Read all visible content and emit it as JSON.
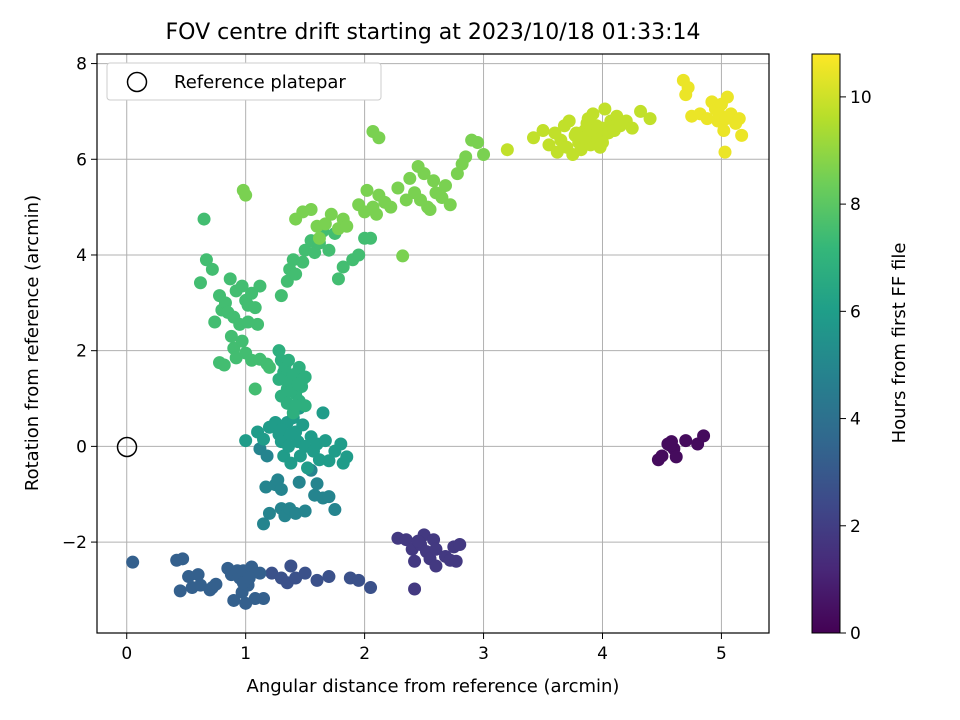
{
  "chart_data": {
    "type": "scatter",
    "title": "FOV centre drift starting at 2023/10/18 01:33:14",
    "xlabel": "Angular distance from reference (arcmin)",
    "ylabel": "Rotation from reference (arcmin)",
    "xlim": [
      -0.25,
      5.4
    ],
    "ylim": [
      -3.9,
      8.2
    ],
    "xticks": [
      0,
      1,
      2,
      3,
      4,
      5
    ],
    "yticks": [
      -2,
      0,
      2,
      4,
      6,
      8
    ],
    "grid": true,
    "legend": {
      "position": "top-left",
      "entries": [
        "Reference platepar"
      ]
    },
    "reference_point": {
      "x": 0,
      "y": 0,
      "marker": "open-circle"
    },
    "colorbar": {
      "label": "Hours from first FF file",
      "colormap": "viridis",
      "range": [
        0,
        10.8
      ],
      "ticks": [
        0,
        2,
        4,
        6,
        8,
        10
      ]
    },
    "marker_color_stops": [
      "#440154",
      "#482878",
      "#3e4989",
      "#31688e",
      "#26828e",
      "#1f9e89",
      "#35b779",
      "#6ece58",
      "#b5de2b",
      "#fde725"
    ],
    "clusters": [
      {
        "t": 0.3,
        "points": [
          [
            4.47,
            -0.28
          ],
          [
            4.5,
            -0.2
          ],
          [
            4.55,
            0.05
          ],
          [
            4.58,
            0.1
          ],
          [
            4.6,
            -0.05
          ],
          [
            4.62,
            -0.22
          ],
          [
            4.7,
            0.12
          ],
          [
            4.8,
            0.05
          ],
          [
            4.85,
            0.22
          ],
          [
            4.57,
            0.02
          ]
        ]
      },
      {
        "t": 1.8,
        "points": [
          [
            2.28,
            -1.92
          ],
          [
            2.35,
            -1.95
          ],
          [
            2.4,
            -2.15
          ],
          [
            2.42,
            -2.4
          ],
          [
            2.47,
            -2.05
          ],
          [
            2.5,
            -1.85
          ],
          [
            2.52,
            -2.2
          ],
          [
            2.55,
            -2.35
          ],
          [
            2.58,
            -1.95
          ],
          [
            2.6,
            -2.15
          ],
          [
            2.6,
            -2.5
          ],
          [
            2.68,
            -2.3
          ],
          [
            2.72,
            -2.38
          ],
          [
            2.75,
            -2.1
          ],
          [
            2.8,
            -2.05
          ],
          [
            2.77,
            -2.4
          ],
          [
            2.45,
            -1.98
          ],
          [
            2.42,
            -2.98
          ]
        ]
      },
      {
        "t": 2.7,
        "points": [
          [
            1.22,
            -2.65
          ],
          [
            1.3,
            -2.75
          ],
          [
            1.35,
            -2.85
          ],
          [
            1.38,
            -2.5
          ],
          [
            1.42,
            -2.75
          ],
          [
            1.5,
            -2.65
          ],
          [
            1.6,
            -2.8
          ],
          [
            1.7,
            -2.72
          ],
          [
            1.88,
            -2.75
          ],
          [
            1.95,
            -2.8
          ],
          [
            2.05,
            -2.95
          ]
        ]
      },
      {
        "t": 3.3,
        "points": [
          [
            0.05,
            -2.42
          ],
          [
            0.42,
            -2.38
          ],
          [
            0.45,
            -3.02
          ],
          [
            0.47,
            -2.35
          ],
          [
            0.52,
            -2.72
          ],
          [
            0.55,
            -2.95
          ],
          [
            0.6,
            -2.68
          ],
          [
            0.62,
            -2.9
          ],
          [
            0.7,
            -3.0
          ],
          [
            0.72,
            -2.95
          ],
          [
            0.75,
            -2.88
          ],
          [
            0.85,
            -2.55
          ],
          [
            0.88,
            -2.68
          ],
          [
            0.9,
            -3.22
          ],
          [
            0.93,
            -2.6
          ],
          [
            0.95,
            -2.75
          ],
          [
            0.97,
            -3.05
          ],
          [
            0.98,
            -2.6
          ],
          [
            1.0,
            -3.28
          ],
          [
            1.02,
            -2.9
          ],
          [
            1.05,
            -2.52
          ],
          [
            1.08,
            -3.18
          ],
          [
            1.12,
            -2.65
          ],
          [
            1.15,
            -3.18
          ],
          [
            0.98,
            -2.85
          ],
          [
            1.03,
            -2.75
          ]
        ]
      },
      {
        "t": 4.9,
        "points": [
          [
            1.15,
            -1.62
          ],
          [
            1.17,
            -0.85
          ],
          [
            1.2,
            -1.4
          ],
          [
            1.25,
            -0.8
          ],
          [
            1.27,
            -0.7
          ],
          [
            1.3,
            -1.3
          ],
          [
            1.3,
            -0.9
          ],
          [
            1.33,
            -1.45
          ],
          [
            1.37,
            -1.3
          ],
          [
            1.42,
            -1.4
          ],
          [
            1.45,
            -0.75
          ],
          [
            1.5,
            -1.35
          ],
          [
            1.55,
            -0.5
          ],
          [
            1.58,
            -1.02
          ],
          [
            1.6,
            -0.78
          ],
          [
            1.65,
            -1.08
          ],
          [
            1.7,
            -1.05
          ],
          [
            1.75,
            -1.32
          ],
          [
            1.12,
            -0.05
          ],
          [
            1.18,
            -0.2
          ]
        ]
      },
      {
        "t": 5.9,
        "points": [
          [
            1.0,
            0.12
          ],
          [
            1.1,
            0.3
          ],
          [
            1.15,
            0.15
          ],
          [
            1.2,
            0.4
          ],
          [
            1.25,
            0.5
          ],
          [
            1.28,
            0.25
          ],
          [
            1.3,
            0.1
          ],
          [
            1.32,
            -0.2
          ],
          [
            1.35,
            0.5
          ],
          [
            1.36,
            0.0
          ],
          [
            1.38,
            -0.35
          ],
          [
            1.4,
            0.6
          ],
          [
            1.42,
            0.3
          ],
          [
            1.44,
            0.1
          ],
          [
            1.45,
            0.8
          ],
          [
            1.46,
            -0.2
          ],
          [
            1.48,
            0.45
          ],
          [
            1.5,
            0.0
          ],
          [
            1.52,
            -0.45
          ],
          [
            1.55,
            0.2
          ],
          [
            1.57,
            -0.1
          ],
          [
            1.6,
            0.05
          ],
          [
            1.62,
            -0.28
          ],
          [
            1.65,
            0.7
          ],
          [
            1.67,
            0.12
          ],
          [
            1.7,
            -0.3
          ],
          [
            1.75,
            -0.1
          ],
          [
            1.8,
            0.05
          ],
          [
            1.82,
            -0.35
          ],
          [
            1.85,
            -0.22
          ],
          [
            1.3,
            0.35
          ],
          [
            1.38,
            0.25
          ]
        ]
      },
      {
        "t": 6.8,
        "points": [
          [
            1.28,
            2.0
          ],
          [
            1.3,
            1.8
          ],
          [
            1.32,
            1.55
          ],
          [
            1.35,
            1.2
          ],
          [
            1.37,
            1.35
          ],
          [
            1.4,
            1.5
          ],
          [
            1.42,
            1.1
          ],
          [
            1.45,
            1.65
          ],
          [
            1.45,
            0.95
          ],
          [
            1.47,
            1.25
          ],
          [
            1.5,
            0.85
          ],
          [
            1.3,
            1.05
          ],
          [
            1.28,
            1.4
          ],
          [
            1.35,
            0.9
          ],
          [
            1.4,
            0.7
          ],
          [
            1.48,
            1.4
          ],
          [
            1.33,
            1.68
          ],
          [
            1.5,
            1.45
          ],
          [
            1.42,
            0.85
          ],
          [
            1.38,
            1.15
          ],
          [
            1.36,
            1.8
          ],
          [
            1.44,
            1.3
          ]
        ]
      },
      {
        "t": 7.5,
        "points": [
          [
            0.62,
            3.42
          ],
          [
            0.65,
            4.75
          ],
          [
            0.67,
            3.9
          ],
          [
            0.72,
            3.7
          ],
          [
            0.74,
            2.6
          ],
          [
            0.78,
            3.15
          ],
          [
            0.8,
            2.85
          ],
          [
            0.83,
            3.0
          ],
          [
            0.85,
            2.8
          ],
          [
            0.87,
            3.5
          ],
          [
            0.9,
            2.7
          ],
          [
            0.92,
            3.25
          ],
          [
            0.95,
            2.55
          ],
          [
            0.97,
            3.35
          ],
          [
            1.0,
            3.05
          ],
          [
            1.02,
            2.95
          ],
          [
            1.05,
            3.2
          ],
          [
            1.08,
            2.9
          ],
          [
            1.12,
            3.35
          ],
          [
            1.3,
            3.15
          ],
          [
            1.35,
            3.45
          ],
          [
            1.37,
            3.7
          ],
          [
            1.4,
            3.9
          ],
          [
            1.42,
            3.6
          ],
          [
            1.48,
            3.85
          ],
          [
            1.5,
            4.1
          ],
          [
            1.55,
            4.3
          ],
          [
            1.58,
            4.05
          ],
          [
            1.62,
            4.25
          ],
          [
            1.65,
            4.5
          ],
          [
            1.7,
            4.1
          ],
          [
            1.75,
            4.45
          ],
          [
            1.78,
            3.5
          ],
          [
            1.82,
            3.75
          ],
          [
            1.9,
            3.9
          ],
          [
            1.95,
            4.0
          ],
          [
            2.0,
            4.35
          ],
          [
            2.05,
            4.35
          ],
          [
            0.78,
            1.75
          ],
          [
            0.82,
            1.7
          ],
          [
            0.9,
            2.05
          ],
          [
            0.92,
            1.85
          ],
          [
            1.0,
            1.95
          ],
          [
            1.05,
            1.8
          ],
          [
            1.08,
            1.2
          ],
          [
            1.1,
            2.55
          ],
          [
            1.12,
            1.82
          ],
          [
            1.18,
            1.72
          ],
          [
            1.2,
            1.65
          ],
          [
            0.88,
            2.3
          ],
          [
            0.97,
            2.2
          ],
          [
            1.02,
            2.6
          ]
        ]
      },
      {
        "t": 8.6,
        "points": [
          [
            0.98,
            5.35
          ],
          [
            1.0,
            5.25
          ],
          [
            1.42,
            4.75
          ],
          [
            1.48,
            4.9
          ],
          [
            1.55,
            4.95
          ],
          [
            1.6,
            4.6
          ],
          [
            1.62,
            4.35
          ],
          [
            1.67,
            4.65
          ],
          [
            1.72,
            4.85
          ],
          [
            1.78,
            4.55
          ],
          [
            1.82,
            4.75
          ],
          [
            1.85,
            4.6
          ],
          [
            1.95,
            5.05
          ],
          [
            2.0,
            4.9
          ],
          [
            2.02,
            5.35
          ],
          [
            2.07,
            5.0
          ],
          [
            2.1,
            4.85
          ],
          [
            2.12,
            5.25
          ],
          [
            2.17,
            5.1
          ],
          [
            2.22,
            5.0
          ],
          [
            2.28,
            5.4
          ],
          [
            2.32,
            3.98
          ],
          [
            2.35,
            5.15
          ],
          [
            2.38,
            5.6
          ],
          [
            2.42,
            5.3
          ],
          [
            2.47,
            5.15
          ],
          [
            2.5,
            5.7
          ],
          [
            2.53,
            5.0
          ],
          [
            2.58,
            5.55
          ],
          [
            2.6,
            5.3
          ],
          [
            2.65,
            5.2
          ],
          [
            2.68,
            5.45
          ],
          [
            2.72,
            5.05
          ],
          [
            2.78,
            5.7
          ],
          [
            2.82,
            5.9
          ],
          [
            2.85,
            6.05
          ],
          [
            2.9,
            6.4
          ],
          [
            2.95,
            6.35
          ],
          [
            3.0,
            6.1
          ],
          [
            2.07,
            6.58
          ],
          [
            2.12,
            6.45
          ],
          [
            2.45,
            5.85
          ],
          [
            2.55,
            4.95
          ]
        ]
      },
      {
        "t": 9.8,
        "points": [
          [
            3.2,
            6.2
          ],
          [
            3.42,
            6.45
          ],
          [
            3.5,
            6.6
          ],
          [
            3.55,
            6.3
          ],
          [
            3.6,
            6.55
          ],
          [
            3.62,
            6.15
          ],
          [
            3.65,
            6.4
          ],
          [
            3.68,
            6.7
          ],
          [
            3.7,
            6.25
          ],
          [
            3.72,
            6.8
          ],
          [
            3.75,
            6.1
          ],
          [
            3.77,
            6.5
          ],
          [
            3.8,
            6.35
          ],
          [
            3.82,
            6.2
          ],
          [
            3.85,
            6.6
          ],
          [
            3.87,
            6.75
          ],
          [
            3.9,
            6.3
          ],
          [
            3.92,
            6.95
          ],
          [
            3.95,
            6.45
          ],
          [
            3.98,
            6.25
          ],
          [
            4.0,
            6.65
          ],
          [
            4.02,
            7.05
          ],
          [
            4.05,
            6.55
          ],
          [
            4.07,
            6.8
          ],
          [
            4.1,
            6.6
          ],
          [
            4.12,
            6.9
          ],
          [
            4.15,
            6.7
          ],
          [
            4.2,
            6.8
          ],
          [
            4.25,
            6.65
          ],
          [
            4.32,
            7.0
          ],
          [
            4.4,
            6.85
          ],
          [
            3.78,
            6.55
          ],
          [
            3.85,
            6.45
          ],
          [
            3.9,
            6.6
          ],
          [
            3.95,
            6.7
          ],
          [
            4.0,
            6.35
          ],
          [
            3.88,
            6.85
          ]
        ]
      },
      {
        "t": 10.5,
        "points": [
          [
            4.68,
            7.65
          ],
          [
            4.7,
            7.35
          ],
          [
            4.72,
            7.5
          ],
          [
            4.75,
            6.9
          ],
          [
            4.82,
            6.95
          ],
          [
            4.88,
            6.85
          ],
          [
            4.92,
            7.2
          ],
          [
            4.95,
            7.05
          ],
          [
            4.97,
            6.8
          ],
          [
            5.0,
            7.15
          ],
          [
            5.02,
            6.6
          ],
          [
            5.03,
            6.15
          ],
          [
            5.05,
            7.3
          ],
          [
            5.08,
            6.95
          ],
          [
            5.12,
            6.75
          ],
          [
            5.15,
            6.85
          ],
          [
            5.17,
            6.5
          ],
          [
            4.98,
            6.95
          ],
          [
            5.04,
            6.85
          ]
        ]
      }
    ]
  }
}
